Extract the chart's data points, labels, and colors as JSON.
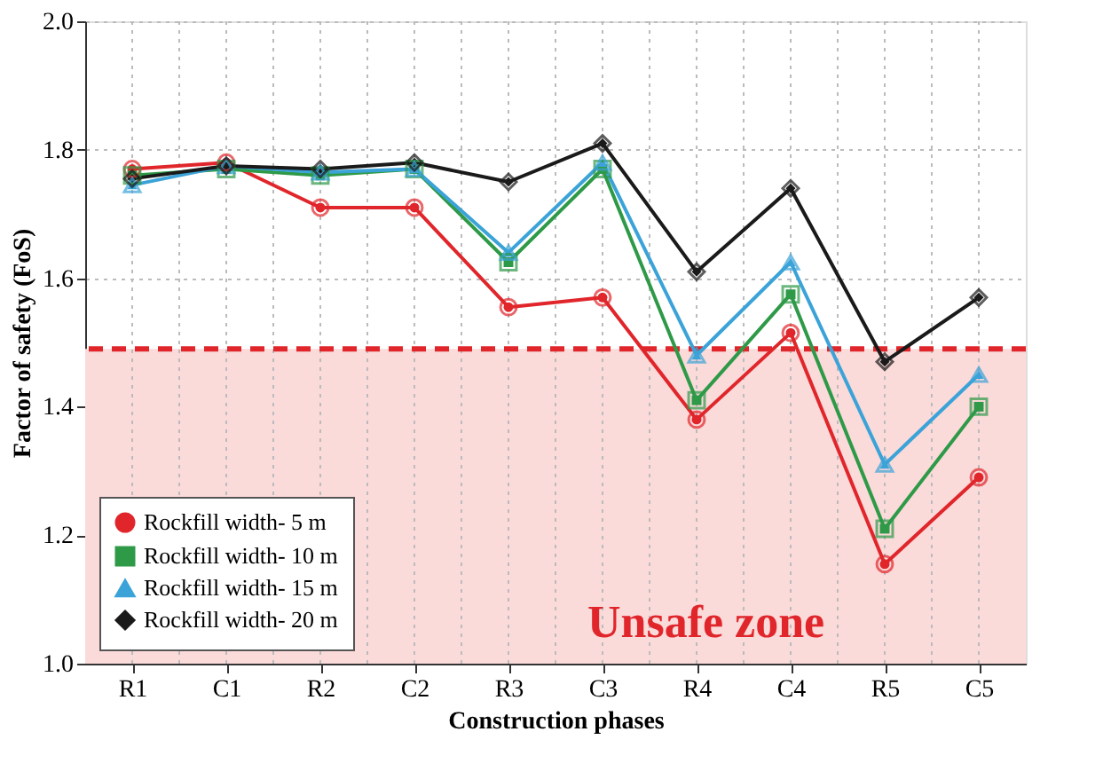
{
  "chart_data": {
    "type": "line",
    "xlabel": "Construction phases",
    "ylabel": "Factor of safety (FoS)",
    "categories": [
      "R1",
      "C1",
      "R2",
      "C2",
      "R3",
      "C3",
      "R4",
      "C4",
      "R5",
      "C5"
    ],
    "series": [
      {
        "name": "Rockfill width- 5 m",
        "color": "#e0262b",
        "marker": "circle",
        "values": [
          1.77,
          1.78,
          1.71,
          1.71,
          1.555,
          1.57,
          1.38,
          1.515,
          1.155,
          1.29
        ]
      },
      {
        "name": "Rockfill width- 10 m",
        "color": "#2e9a48",
        "marker": "square",
        "values": [
          1.76,
          1.77,
          1.76,
          1.77,
          1.625,
          1.77,
          1.41,
          1.575,
          1.21,
          1.4
        ]
      },
      {
        "name": "Rockfill width- 15 m",
        "color": "#3ba3d8",
        "marker": "triangle",
        "values": [
          1.745,
          1.775,
          1.765,
          1.77,
          1.64,
          1.78,
          1.48,
          1.625,
          1.31,
          1.45
        ]
      },
      {
        "name": "Rockfill width- 20 m",
        "color": "#1a1a1a",
        "marker": "diamond",
        "values": [
          1.755,
          1.775,
          1.77,
          1.78,
          1.75,
          1.81,
          1.61,
          1.74,
          1.47,
          1.57
        ]
      }
    ],
    "ylim": [
      1.0,
      2.0
    ],
    "yticks": [
      {
        "value": 1.0,
        "label": "1.0"
      },
      1.2,
      1.4,
      1.6,
      1.8,
      {
        "value": 2.0,
        "label": "2.0"
      }
    ],
    "grid": true,
    "legend": "bottom left",
    "ref_lines": [
      {
        "axis": "y",
        "value": 1.49,
        "color": "#e0262b",
        "line_style": "dashed"
      }
    ],
    "bands": [
      {
        "axis": "y",
        "from": 1.0,
        "to": 1.49,
        "label": "Unsafe zone",
        "color": "#fbdada"
      }
    ]
  }
}
